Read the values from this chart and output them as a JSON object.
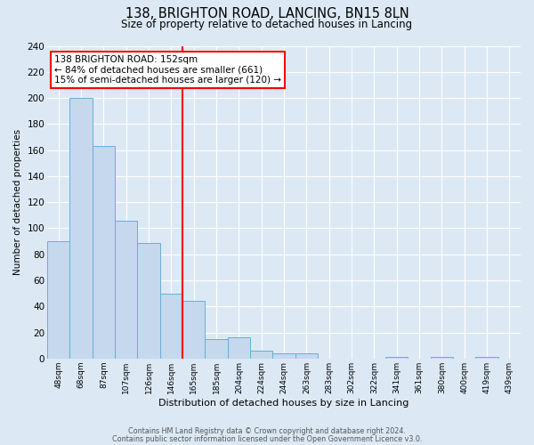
{
  "title": "138, BRIGHTON ROAD, LANCING, BN15 8LN",
  "subtitle": "Size of property relative to detached houses in Lancing",
  "xlabel": "Distribution of detached houses by size in Lancing",
  "ylabel": "Number of detached properties",
  "bin_labels": [
    "48sqm",
    "68sqm",
    "87sqm",
    "107sqm",
    "126sqm",
    "146sqm",
    "165sqm",
    "185sqm",
    "204sqm",
    "224sqm",
    "244sqm",
    "263sqm",
    "283sqm",
    "302sqm",
    "322sqm",
    "341sqm",
    "361sqm",
    "380sqm",
    "400sqm",
    "419sqm",
    "439sqm"
  ],
  "bar_values": [
    90,
    200,
    163,
    106,
    89,
    50,
    44,
    15,
    16,
    6,
    4,
    4,
    0,
    0,
    0,
    1,
    0,
    1,
    0,
    1,
    0
  ],
  "bar_color": "#c5d8ed",
  "bar_edge_color": "#6aaed6",
  "vline_x": 6.0,
  "vline_color": "red",
  "annotation_text": "138 BRIGHTON ROAD: 152sqm\n← 84% of detached houses are smaller (661)\n15% of semi-detached houses are larger (120) →",
  "annotation_box_color": "white",
  "annotation_box_edge_color": "red",
  "ylim": [
    0,
    240
  ],
  "yticks": [
    0,
    20,
    40,
    60,
    80,
    100,
    120,
    140,
    160,
    180,
    200,
    220,
    240
  ],
  "footer1": "Contains HM Land Registry data © Crown copyright and database right 2024.",
  "footer2": "Contains public sector information licensed under the Open Government Licence v3.0.",
  "bg_color": "#dce9f5",
  "plot_bg_color": "#dce9f5",
  "title_fontsize": 10.5,
  "subtitle_fontsize": 8.5
}
